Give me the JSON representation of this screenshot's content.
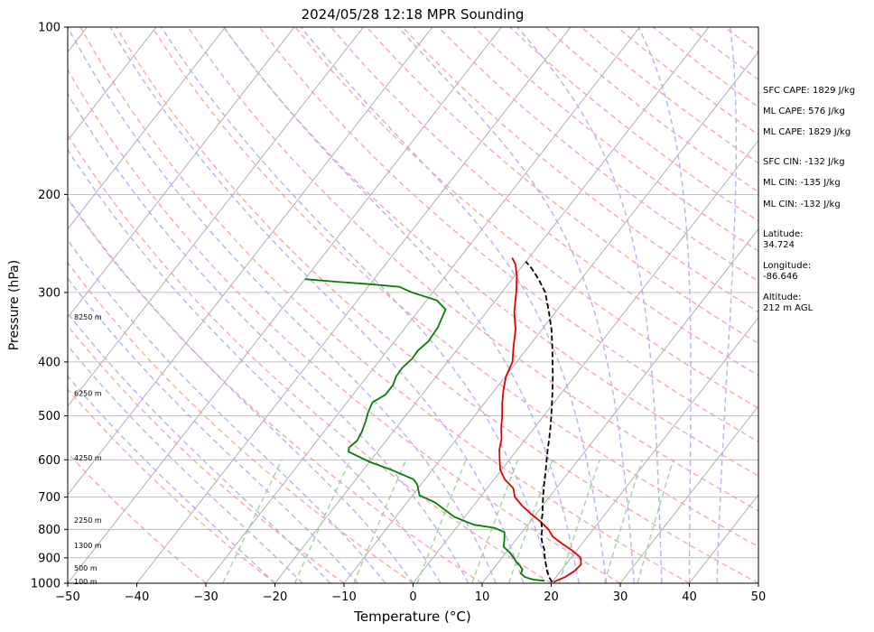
{
  "chart_data": {
    "type": "line",
    "title": "2024/05/28 12:18 MPR Sounding",
    "xlabel": "Temperature (°C)",
    "ylabel": "Pressure (hPa)",
    "xlim": [
      -50,
      50
    ],
    "ylim": [
      1000,
      100
    ],
    "y_scale": "log",
    "x_ticks": [
      -50,
      -40,
      -30,
      -20,
      -10,
      0,
      10,
      20,
      30,
      40,
      50
    ],
    "y_ticks": [
      1000,
      900,
      800,
      700,
      600,
      500,
      400,
      300,
      200,
      100
    ],
    "grid": "horizontal",
    "background_lines": {
      "isotherms_color": "#9e9e9e",
      "dry_adiabats_color": "#f7a8a8",
      "moist_adiabats_color": "#b7b0f5",
      "mixing_ratio_color": "#9ed49e"
    },
    "series": [
      {
        "key": "temperature",
        "color": "#e00000",
        "points": [
          [
            20.2,
            995
          ],
          [
            21.3,
            975
          ],
          [
            22.0,
            950
          ],
          [
            22.2,
            925
          ],
          [
            21.4,
            900
          ],
          [
            19.5,
            875
          ],
          [
            17.2,
            850
          ],
          [
            15.0,
            825
          ],
          [
            13.5,
            800
          ],
          [
            11.5,
            775
          ],
          [
            9.2,
            750
          ],
          [
            7.0,
            725
          ],
          [
            5.0,
            700
          ],
          [
            3.8,
            675
          ],
          [
            1.5,
            650
          ],
          [
            -0.2,
            625
          ],
          [
            -1.4,
            600
          ],
          [
            -2.6,
            575
          ],
          [
            -3.5,
            550
          ],
          [
            -4.8,
            525
          ],
          [
            -6.0,
            500
          ],
          [
            -7.4,
            475
          ],
          [
            -8.7,
            450
          ],
          [
            -9.9,
            425
          ],
          [
            -10.6,
            400
          ],
          [
            -12.2,
            375
          ],
          [
            -13.8,
            350
          ],
          [
            -16.0,
            325
          ],
          [
            -17.9,
            300
          ],
          [
            -19.7,
            280
          ],
          [
            -21.2,
            267
          ],
          [
            -22.4,
            260
          ]
        ]
      },
      {
        "key": "dewpoint",
        "color": "#008000",
        "points": [
          [
            18.8,
            990
          ],
          [
            17.0,
            985
          ],
          [
            15.5,
            975
          ],
          [
            14.5,
            960
          ],
          [
            14.3,
            945
          ],
          [
            13.5,
            930
          ],
          [
            12.5,
            915
          ],
          [
            12.0,
            905
          ],
          [
            10.5,
            880
          ],
          [
            9.0,
            860
          ],
          [
            8.3,
            835
          ],
          [
            7.5,
            810
          ],
          [
            5.5,
            795
          ],
          [
            2.2,
            785
          ],
          [
            -1.5,
            760
          ],
          [
            -6.0,
            715
          ],
          [
            -9.0,
            695
          ],
          [
            -10.5,
            665
          ],
          [
            -11.7,
            650
          ],
          [
            -16.0,
            625
          ],
          [
            -20.0,
            605
          ],
          [
            -24.2,
            580
          ],
          [
            -24.6,
            570
          ],
          [
            -24.2,
            555
          ],
          [
            -24.5,
            535
          ],
          [
            -25.2,
            510
          ],
          [
            -25.8,
            493
          ],
          [
            -26.3,
            473
          ],
          [
            -25.3,
            458
          ],
          [
            -25.3,
            440
          ],
          [
            -25.8,
            425
          ],
          [
            -25.9,
            410
          ],
          [
            -25.5,
            395
          ],
          [
            -25.6,
            382
          ],
          [
            -25.1,
            367
          ],
          [
            -25.3,
            347
          ],
          [
            -26.2,
            322
          ],
          [
            -28.5,
            310
          ],
          [
            -33.0,
            300
          ],
          [
            -35.5,
            293
          ],
          [
            -40.0,
            290
          ],
          [
            -45.0,
            287
          ],
          [
            -50.0,
            284
          ]
        ]
      },
      {
        "key": "parcel",
        "color": "#000000",
        "dashed": true,
        "points": [
          [
            20.0,
            995
          ],
          [
            19.0,
            975
          ],
          [
            18.0,
            950
          ],
          [
            17.1,
            925
          ],
          [
            16.2,
            900
          ],
          [
            15.2,
            870
          ],
          [
            14.3,
            850
          ],
          [
            13.3,
            825
          ],
          [
            12.6,
            800
          ],
          [
            11.6,
            775
          ],
          [
            10.9,
            750
          ],
          [
            10.0,
            725
          ],
          [
            9.1,
            700
          ],
          [
            8.2,
            675
          ],
          [
            7.3,
            650
          ],
          [
            6.4,
            625
          ],
          [
            5.4,
            600
          ],
          [
            4.4,
            575
          ],
          [
            3.4,
            550
          ],
          [
            2.3,
            525
          ],
          [
            1.1,
            500
          ],
          [
            -0.2,
            475
          ],
          [
            -1.6,
            450
          ],
          [
            -3.1,
            425
          ],
          [
            -4.8,
            400
          ],
          [
            -6.6,
            375
          ],
          [
            -8.6,
            350
          ],
          [
            -11.0,
            325
          ],
          [
            -13.7,
            300
          ],
          [
            -16.0,
            285
          ],
          [
            -18.3,
            272
          ],
          [
            -20.0,
            264
          ]
        ]
      }
    ],
    "height_labels": [
      {
        "p": 332,
        "text": "8250 m"
      },
      {
        "p": 455,
        "text": "6250 m"
      },
      {
        "p": 595,
        "text": "4250 m"
      },
      {
        "p": 770,
        "text": "2250 m"
      },
      {
        "p": 855,
        "text": "1300 m"
      },
      {
        "p": 938,
        "text": "500 m"
      },
      {
        "p": 992,
        "text": "100 m"
      }
    ]
  },
  "side_panel": [
    {
      "key": "sfc_cape",
      "text": "SFC CAPE: 1829 J/kg"
    },
    {
      "key": "ml_cape_1",
      "text": "ML CAPE: 576 J/kg"
    },
    {
      "key": "ml_cape_2",
      "text": "ML CAPE: 1829 J/kg"
    },
    {
      "key": "sfc_cin",
      "text": "SFC CIN: -132 J/kg"
    },
    {
      "key": "ml_cin_1",
      "text": "ML CIN: -135 J/kg"
    },
    {
      "key": "ml_cin_2",
      "text": "ML CIN: -132 J/kg"
    },
    {
      "key": "lat_label",
      "text": "Latitude:"
    },
    {
      "key": "lat_value",
      "text": "34.724"
    },
    {
      "key": "lon_label",
      "text": "Longitude:"
    },
    {
      "key": "lon_value",
      "text": "-86.646"
    },
    {
      "key": "alt_label",
      "text": "Altitude:"
    },
    {
      "key": "alt_value",
      "text": "212 m AGL"
    }
  ]
}
